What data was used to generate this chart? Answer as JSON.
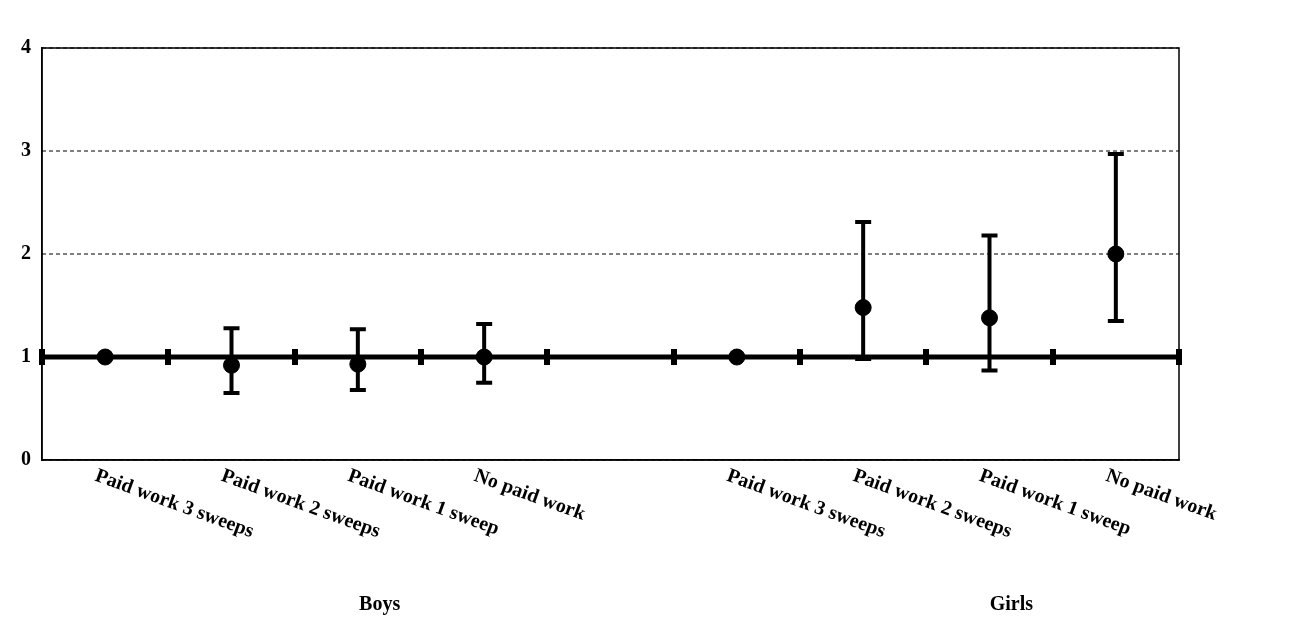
{
  "chart_data": {
    "type": "scatter",
    "categories": [
      "Paid work 3 sweeps",
      "Paid work 2 sweeps",
      "Paid work 1 sweep",
      "No paid work",
      null,
      "Paid work 3 sweeps",
      "Paid work 2 sweeps",
      "Paid work 1 sweep",
      "No paid work"
    ],
    "series": [
      {
        "color": "#000000",
        "values": [
          1.0,
          0.92,
          0.93,
          1.0,
          null,
          1.0,
          1.48,
          1.38,
          2.0
        ],
        "errors": [
          null,
          [
            0.65,
            1.28
          ],
          [
            0.68,
            1.27
          ],
          [
            0.75,
            1.32
          ],
          null,
          null,
          [
            0.98,
            2.31
          ],
          [
            0.87,
            2.18
          ],
          [
            1.35,
            2.97
          ]
        ]
      }
    ],
    "ylim": [
      0,
      4
    ],
    "yticks": [
      0,
      1,
      2,
      3,
      4
    ],
    "grid": "y",
    "marker": "circle",
    "legend": false,
    "ref_lines": [
      {
        "axis": "y",
        "value": 1,
        "color": "#000000"
      }
    ],
    "annotations": [
      "Boys",
      "Girls"
    ]
  }
}
